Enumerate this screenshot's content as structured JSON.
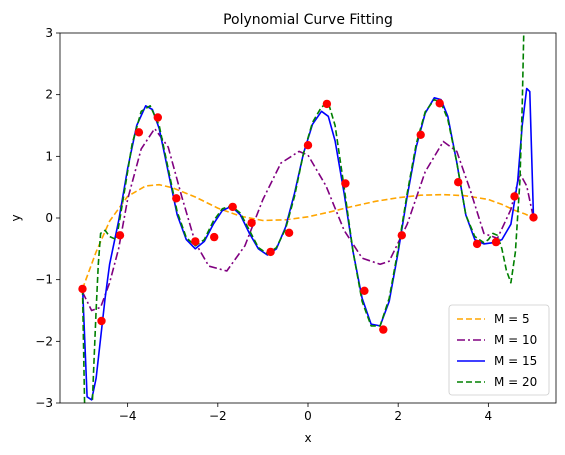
{
  "chart_data": {
    "type": "line",
    "title": "Polynomial Curve Fitting",
    "xlabel": "x",
    "ylabel": "y",
    "xlim": [
      -5.5,
      5.5
    ],
    "ylim": [
      -3,
      3
    ],
    "grid": false,
    "legend_position": "bottom-right",
    "x_ticks": [
      -4,
      -2,
      0,
      2,
      4
    ],
    "y_ticks": [
      -3,
      -2,
      -1,
      0,
      1,
      2,
      3
    ],
    "x_tick_labels": [
      "−4",
      "−2",
      "0",
      "2",
      "4"
    ],
    "y_tick_labels": [
      "−3",
      "−2",
      "−1",
      "0",
      "1",
      "2",
      "3"
    ],
    "points": {
      "color": "#ff0000",
      "x": [
        -5.0,
        -4.58,
        -4.17,
        -3.75,
        -3.33,
        -2.92,
        -2.5,
        -2.08,
        -1.67,
        -1.25,
        -0.83,
        -0.42,
        0.0,
        0.42,
        0.83,
        1.25,
        1.67,
        2.08,
        2.5,
        2.92,
        3.33,
        3.75,
        4.17,
        4.58,
        5.0
      ],
      "y": [
        -1.15,
        -1.67,
        -0.28,
        1.39,
        1.63,
        0.32,
        -0.38,
        -0.31,
        0.18,
        -0.08,
        -0.55,
        -0.24,
        1.18,
        1.85,
        0.56,
        -1.18,
        -1.81,
        -0.28,
        1.35,
        1.86,
        0.58,
        -0.42,
        -0.39,
        0.35,
        0.01
      ]
    },
    "series": [
      {
        "name": "M = 5",
        "color": "#ffa500",
        "style": "dashed",
        "x": [
          -5.0,
          -4.7,
          -4.4,
          -4.0,
          -3.6,
          -3.3,
          -3.0,
          -2.5,
          -2.0,
          -1.5,
          -1.0,
          -0.5,
          0.0,
          0.5,
          1.0,
          1.5,
          2.0,
          2.5,
          3.0,
          3.5,
          4.0,
          4.3,
          4.6,
          4.8,
          5.0
        ],
        "y": [
          -1.15,
          -0.55,
          -0.05,
          0.35,
          0.52,
          0.54,
          0.49,
          0.34,
          0.16,
          0.03,
          -0.04,
          -0.03,
          0.02,
          0.1,
          0.19,
          0.27,
          0.33,
          0.37,
          0.38,
          0.36,
          0.3,
          0.22,
          0.12,
          0.07,
          0.0
        ]
      },
      {
        "name": "M = 10",
        "color": "#800080",
        "style": "dashdot",
        "x": [
          -5.0,
          -4.8,
          -4.6,
          -4.4,
          -4.2,
          -4.0,
          -3.7,
          -3.4,
          -3.1,
          -2.8,
          -2.5,
          -2.2,
          -1.8,
          -1.4,
          -1.0,
          -0.6,
          -0.2,
          0.0,
          0.4,
          0.8,
          1.2,
          1.6,
          1.8,
          2.2,
          2.6,
          3.0,
          3.3,
          3.6,
          3.9,
          4.2,
          4.5,
          4.7,
          4.85,
          5.0
        ],
        "y": [
          -1.2,
          -1.5,
          -1.45,
          -1.05,
          -0.5,
          0.3,
          1.12,
          1.45,
          1.15,
          0.35,
          -0.4,
          -0.78,
          -0.86,
          -0.45,
          0.3,
          0.89,
          1.08,
          1.02,
          0.52,
          -0.2,
          -0.65,
          -0.75,
          -0.7,
          -0.1,
          0.75,
          1.24,
          1.08,
          0.45,
          -0.25,
          -0.33,
          0.14,
          0.72,
          0.52,
          0.0
        ]
      },
      {
        "name": "M = 15",
        "color": "#0000ff",
        "style": "solid",
        "x": [
          -5.0,
          -4.9,
          -4.8,
          -4.7,
          -4.6,
          -4.5,
          -4.4,
          -4.2,
          -4.0,
          -3.8,
          -3.6,
          -3.45,
          -3.3,
          -3.1,
          -2.9,
          -2.7,
          -2.5,
          -2.3,
          -2.1,
          -1.9,
          -1.7,
          -1.5,
          -1.3,
          -1.1,
          -0.9,
          -0.7,
          -0.5,
          -0.3,
          -0.1,
          0.1,
          0.3,
          0.45,
          0.6,
          0.8,
          1.0,
          1.2,
          1.4,
          1.6,
          1.8,
          2.0,
          2.2,
          2.4,
          2.6,
          2.8,
          2.95,
          3.1,
          3.3,
          3.5,
          3.7,
          3.9,
          4.1,
          4.3,
          4.5,
          4.65,
          4.75,
          4.85,
          4.92,
          5.0
        ],
        "y": [
          -1.1,
          -2.9,
          -2.95,
          -2.6,
          -1.95,
          -1.3,
          -0.75,
          -0.05,
          0.8,
          1.5,
          1.82,
          1.76,
          1.45,
          0.75,
          0.05,
          -0.35,
          -0.5,
          -0.38,
          -0.1,
          0.12,
          0.19,
          0.05,
          -0.25,
          -0.5,
          -0.6,
          -0.5,
          -0.15,
          0.4,
          1.05,
          1.52,
          1.73,
          1.65,
          1.25,
          0.4,
          -0.55,
          -1.3,
          -1.72,
          -1.75,
          -1.35,
          -0.55,
          0.35,
          1.15,
          1.7,
          1.95,
          1.92,
          1.65,
          0.9,
          0.05,
          -0.35,
          -0.42,
          -0.4,
          -0.35,
          -0.1,
          0.6,
          1.5,
          2.1,
          2.05,
          0.0
        ]
      },
      {
        "name": "M = 20",
        "color": "#008000",
        "style": "dashed",
        "x": [
          -5.0,
          -4.95,
          -4.9,
          -4.85,
          -4.8,
          -4.75,
          -4.7,
          -4.65,
          -4.6,
          -4.5,
          -4.4,
          -4.25,
          -4.1,
          -3.9,
          -3.7,
          -3.5,
          -3.3,
          -3.1,
          -2.9,
          -2.7,
          -2.5,
          -2.3,
          -2.1,
          -1.9,
          -1.7,
          -1.5,
          -1.3,
          -1.1,
          -0.9,
          -0.7,
          -0.5,
          -0.3,
          -0.1,
          0.1,
          0.3,
          0.45,
          0.6,
          0.8,
          1.0,
          1.2,
          1.4,
          1.6,
          1.8,
          2.0,
          2.2,
          2.4,
          2.6,
          2.8,
          2.95,
          3.1,
          3.3,
          3.5,
          3.7,
          3.9,
          4.0,
          4.1,
          4.2,
          4.3,
          4.4,
          4.5,
          4.6,
          4.7,
          4.75,
          4.8
        ],
        "y": [
          -1.15,
          -3.2,
          -4.0,
          -4.0,
          -3.3,
          -2.4,
          -1.5,
          -0.75,
          -0.25,
          -0.2,
          -0.3,
          -0.35,
          0.3,
          1.2,
          1.73,
          1.82,
          1.5,
          0.8,
          0.1,
          -0.32,
          -0.45,
          -0.35,
          -0.05,
          0.15,
          0.2,
          0.08,
          -0.2,
          -0.48,
          -0.58,
          -0.48,
          -0.18,
          0.35,
          1.05,
          1.55,
          1.8,
          1.87,
          1.5,
          0.5,
          -0.55,
          -1.35,
          -1.75,
          -1.75,
          -1.3,
          -0.5,
          0.4,
          1.2,
          1.72,
          1.92,
          1.87,
          1.6,
          0.9,
          0.05,
          -0.3,
          -0.4,
          -0.35,
          -0.25,
          -0.28,
          -0.5,
          -0.85,
          -1.05,
          -0.55,
          0.6,
          1.8,
          3.5
        ]
      }
    ]
  }
}
